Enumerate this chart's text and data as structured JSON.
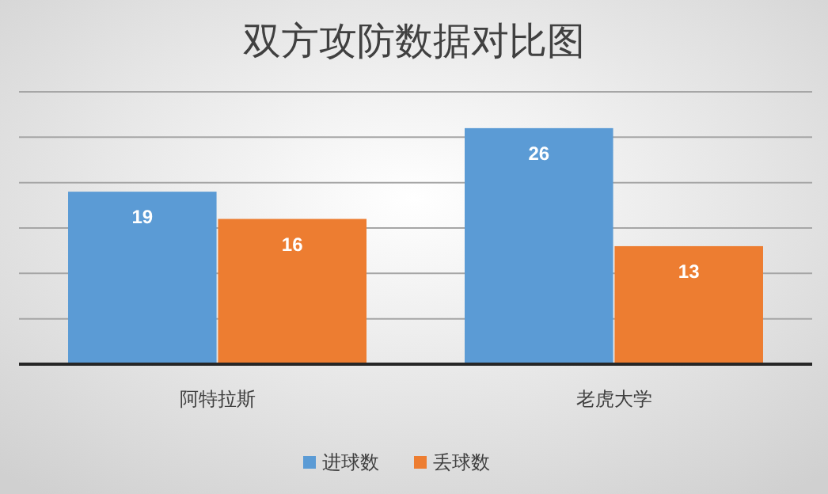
{
  "chart_data": {
    "type": "bar",
    "title": "双方攻防数据对比图",
    "categories": [
      "阿特拉斯",
      "老虎大学"
    ],
    "series": [
      {
        "name": "进球数",
        "color": "#5b9bd5",
        "values": [
          19,
          26
        ]
      },
      {
        "name": "丢球数",
        "color": "#ed7d31",
        "values": [
          16,
          13
        ]
      }
    ],
    "ylim": [
      0,
      30
    ],
    "yticks": [
      {
        "value": 0,
        "label": null
      },
      {
        "value": 5,
        "label": null
      },
      {
        "value": 10,
        "label": null
      },
      {
        "value": 15,
        "label": null
      },
      {
        "value": 20,
        "label": null
      },
      {
        "value": 25,
        "label": null
      },
      {
        "value": 30,
        "label": null
      }
    ],
    "tick_labels": "x",
    "grid": "y",
    "legend": "bottom",
    "data_labels": true
  }
}
